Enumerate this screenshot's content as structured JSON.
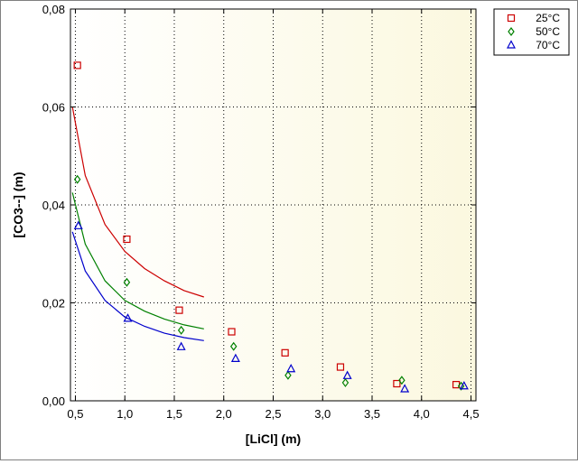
{
  "chart_data": {
    "type": "scatter",
    "xlabel": "[LiCl] (m)",
    "ylabel": "[CO3--] (m)",
    "xlim": [
      0.45,
      4.55
    ],
    "ylim": [
      0,
      0.08
    ],
    "xticks": [
      0.5,
      1.0,
      1.5,
      2.0,
      2.5,
      3.0,
      3.5,
      4.0,
      4.5
    ],
    "xtick_labels": [
      "0,5",
      "1,0",
      "1,5",
      "2,0",
      "2,5",
      "3,0",
      "3,5",
      "4,0",
      "4,5"
    ],
    "yticks": [
      0,
      0.02,
      0.04,
      0.06,
      0.08
    ],
    "ytick_labels": [
      "0,00",
      "0,02",
      "0,04",
      "0,06",
      "0,08"
    ],
    "grid": true,
    "legend_position": "top-right, outside plot",
    "series": [
      {
        "name": "25°C",
        "marker": "square",
        "color": "#cc0000",
        "points": [
          [
            0.52,
            0.0685
          ],
          [
            1.02,
            0.033
          ],
          [
            1.55,
            0.0185
          ],
          [
            2.08,
            0.0141
          ],
          [
            2.62,
            0.0098
          ],
          [
            3.18,
            0.0069
          ],
          [
            3.75,
            0.0035
          ],
          [
            4.35,
            0.0033
          ]
        ],
        "fit_curve": [
          [
            0.47,
            0.06
          ],
          [
            0.6,
            0.046
          ],
          [
            0.8,
            0.036
          ],
          [
            1.0,
            0.0305
          ],
          [
            1.2,
            0.027
          ],
          [
            1.4,
            0.0245
          ],
          [
            1.6,
            0.0225
          ],
          [
            1.8,
            0.0212
          ]
        ]
      },
      {
        "name": "50°C",
        "marker": "diamond",
        "color": "#008000",
        "points": [
          [
            0.52,
            0.0452
          ],
          [
            1.02,
            0.0242
          ],
          [
            1.57,
            0.0144
          ],
          [
            2.1,
            0.0111
          ],
          [
            2.65,
            0.0052
          ],
          [
            3.23,
            0.0037
          ],
          [
            3.8,
            0.0042
          ],
          [
            4.4,
            0.003
          ]
        ],
        "fit_curve": [
          [
            0.47,
            0.0425
          ],
          [
            0.6,
            0.032
          ],
          [
            0.8,
            0.0245
          ],
          [
            1.0,
            0.0205
          ],
          [
            1.2,
            0.0183
          ],
          [
            1.4,
            0.0167
          ],
          [
            1.6,
            0.0155
          ],
          [
            1.8,
            0.0147
          ]
        ]
      },
      {
        "name": "70°C",
        "marker": "triangle",
        "color": "#0000cc",
        "points": [
          [
            0.53,
            0.0357
          ],
          [
            1.03,
            0.0168
          ],
          [
            1.57,
            0.011
          ],
          [
            2.12,
            0.0086
          ],
          [
            2.68,
            0.0065
          ],
          [
            3.25,
            0.0051
          ],
          [
            3.83,
            0.0024
          ],
          [
            4.43,
            0.003
          ]
        ],
        "fit_curve": [
          [
            0.47,
            0.0345
          ],
          [
            0.6,
            0.0265
          ],
          [
            0.8,
            0.0205
          ],
          [
            1.0,
            0.0171
          ],
          [
            1.2,
            0.0152
          ],
          [
            1.4,
            0.0138
          ],
          [
            1.6,
            0.0129
          ],
          [
            1.8,
            0.0123
          ]
        ]
      }
    ]
  }
}
